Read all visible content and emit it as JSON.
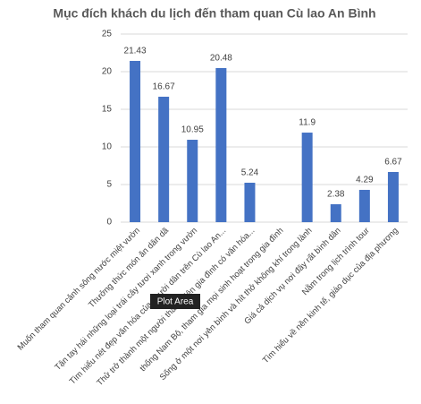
{
  "chart_data": {
    "type": "bar",
    "title": "Mục đích khách du lịch đến tham quan Cù lao An Bình",
    "categories": [
      "Muốn tham quan cảnh sông nước miệt vườn",
      "Thưởng thức món ăn dân dã",
      "Tận tay hái những loại trái cây tươi xanh trong vườn",
      "Tìm hiểu nét đẹp văn hóa của người dân trên Cù lao An...",
      "Thử trở thành một người thành viên gia đình có văn hóa...",
      "thống Nam Bộ, tham gia mọi sinh hoạt trong gia đình",
      "Sống ở một nơi yên bình và hít thở không khí trong lành",
      "Giá cả dịch vụ nơi đây rất bình dân",
      "Nằm trong lịch trình tour",
      "Tìm hiểu về nền kinh tế, giáo dục của địa phương"
    ],
    "values": [
      21.43,
      16.67,
      10.95,
      20.48,
      5.24,
      null,
      11.9,
      2.38,
      4.29,
      6.67
    ],
    "color": "#4472c4",
    "ylim": [
      0,
      25
    ],
    "yticks": [
      0,
      5,
      10,
      15,
      20,
      25
    ],
    "grid": true,
    "tooltip": "Plot Area"
  }
}
